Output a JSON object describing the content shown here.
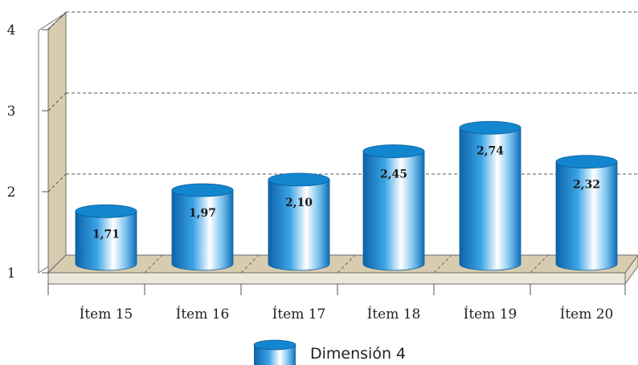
{
  "chart_data": {
    "type": "bar",
    "style": "3d-cylinder",
    "categories": [
      "Ítem 15",
      "Ítem 16",
      "Ítem 17",
      "Ítem 18",
      "Ítem 19",
      "Ítem 20"
    ],
    "series": [
      {
        "name": "Dimensión 4",
        "values": [
          1.71,
          1.97,
          2.1,
          2.45,
          2.74,
          2.32
        ]
      }
    ],
    "value_labels": [
      "1,71",
      "1,97",
      "2,10",
      "2,45",
      "2,74",
      "2,32"
    ],
    "yticks": [
      "1",
      "2",
      "3",
      "4"
    ],
    "ylim": [
      1,
      4
    ],
    "grid": true,
    "legend_position": "bottom-center",
    "colors": {
      "bar": "#1a8fd8",
      "bar_top": "#1386d0",
      "floor": "#d8ccb0",
      "wall": "#d8ccb0"
    }
  }
}
